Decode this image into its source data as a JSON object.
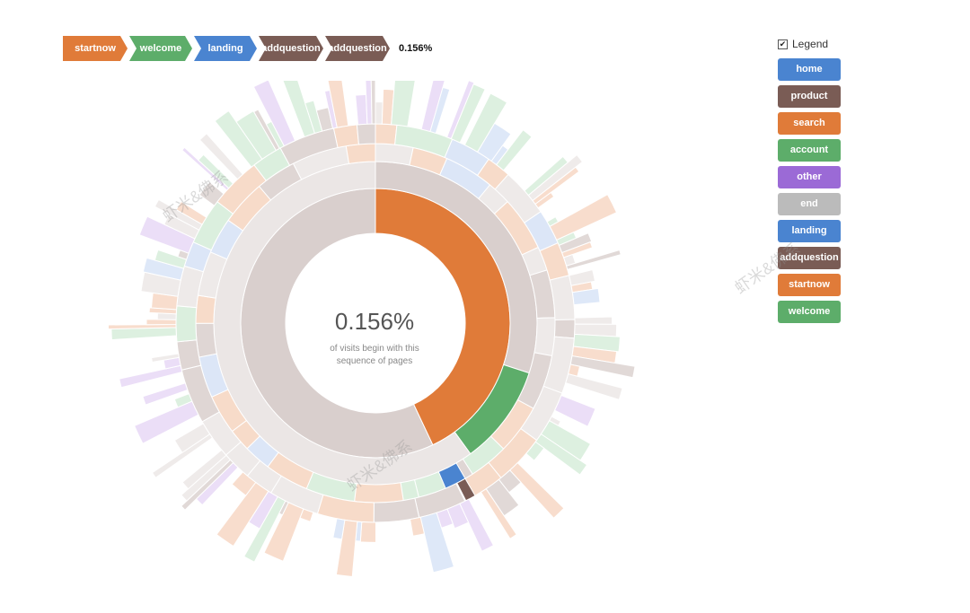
{
  "breadcrumb": {
    "items": [
      {
        "label": "startnow",
        "color": "#e07b39"
      },
      {
        "label": "welcome",
        "color": "#5dad6a"
      },
      {
        "label": "landing",
        "color": "#4a84d0"
      },
      {
        "label": "addquestion",
        "color": "#7a5c55"
      },
      {
        "label": "addquestion",
        "color": "#7a5c55"
      }
    ],
    "percent": "0.156%"
  },
  "center": {
    "percent": "0.156%",
    "line1": "of visits begin with this",
    "line2": "sequence of pages"
  },
  "legend": {
    "label": "Legend",
    "checked": true,
    "items": [
      {
        "label": "home",
        "color": "#4a84d0"
      },
      {
        "label": "product",
        "color": "#7a5c55"
      },
      {
        "label": "search",
        "color": "#e07b39"
      },
      {
        "label": "account",
        "color": "#5dad6a"
      },
      {
        "label": "other",
        "color": "#9b6ad6"
      },
      {
        "label": "end",
        "color": "#bbbbbb"
      },
      {
        "label": "landing",
        "color": "#4a84d0"
      },
      {
        "label": "addquestion",
        "color": "#7a5c55"
      },
      {
        "label": "startnow",
        "color": "#e07b39"
      },
      {
        "label": "welcome",
        "color": "#5dad6a"
      }
    ]
  },
  "watermark": "虾米&佛系",
  "chart_data": {
    "type": "sunburst",
    "highlighted_sequence": [
      "startnow",
      "welcome",
      "landing",
      "addquestion",
      "addquestion"
    ],
    "highlighted_share_percent": 0.156,
    "rings": [
      {
        "level": 1,
        "segments": [
          {
            "name": "startnow",
            "fraction": 0.43,
            "highlighted": true
          },
          {
            "name": "other",
            "fraction": 0.57,
            "highlighted": false
          }
        ]
      },
      {
        "level": 2,
        "segments": [
          {
            "name": "startnow",
            "fraction": 0.3,
            "highlighted": false
          },
          {
            "name": "welcome",
            "fraction": 0.1,
            "highlighted": true
          },
          {
            "name": "other",
            "fraction": 0.6,
            "highlighted": false
          }
        ]
      },
      {
        "level": 3,
        "segments": [
          {
            "name": "landing",
            "fraction": 0.02,
            "highlighted": true
          }
        ]
      },
      {
        "level": 4,
        "segments": [
          {
            "name": "addquestion",
            "fraction": 0.006,
            "highlighted": true
          }
        ]
      },
      {
        "level": 5,
        "segments": [
          {
            "name": "addquestion",
            "fraction": 0.003,
            "highlighted": true
          }
        ]
      }
    ]
  }
}
